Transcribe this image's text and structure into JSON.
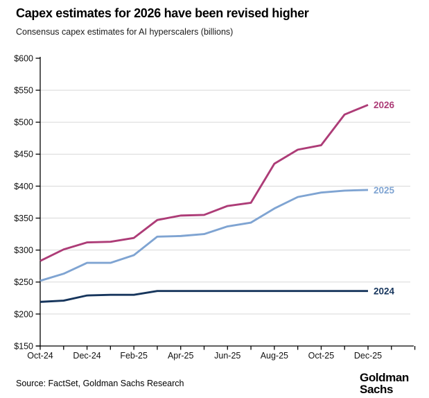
{
  "header": {
    "title_note": "bound from chart_data.title"
  },
  "footer": {
    "source": "Source: FactSet, Goldman Sachs Research",
    "logo_line1": "Goldman",
    "logo_line2": "Sachs"
  },
  "chart_data": {
    "type": "line",
    "title": "Capex estimates for 2026 have been revised higher",
    "subtitle": "Consensus capex estimates for AI hyperscalers (billions)",
    "x": [
      "Oct-24",
      "Nov-24",
      "Dec-24",
      "Jan-25",
      "Feb-25",
      "Mar-25",
      "Apr-25",
      "May-25",
      "Jun-25",
      "Jul-25",
      "Aug-25",
      "Sep-25",
      "Oct-25",
      "Nov-25",
      "Dec-25"
    ],
    "x_axis_tick_labels": [
      "Oct-24",
      "Dec-24",
      "Feb-25",
      "Apr-25",
      "Jun-25",
      "Aug-25",
      "Oct-25",
      "Dec-25"
    ],
    "series": [
      {
        "name": "2026",
        "color": "#AD3C77",
        "values": [
          283,
          301,
          312,
          313,
          319,
          347,
          354,
          355,
          369,
          374,
          435,
          457,
          464,
          512,
          527
        ]
      },
      {
        "name": "2025",
        "color": "#7FA4D2",
        "values": [
          252,
          263,
          280,
          280,
          292,
          321,
          322,
          325,
          337,
          343,
          365,
          383,
          390,
          393,
          394
        ]
      },
      {
        "name": "2024",
        "color": "#16355C",
        "values": [
          219,
          221,
          229,
          230,
          230,
          236,
          236,
          236,
          236,
          236,
          236,
          236,
          236,
          236,
          236
        ]
      }
    ],
    "ylim": [
      150,
      600
    ],
    "yticks": [
      600,
      550,
      500,
      450,
      400,
      350,
      300,
      250,
      200,
      150
    ],
    "ytick_labels": [
      "$600",
      "$550",
      "$500",
      "$450",
      "$400",
      "$350",
      "$300",
      "$250",
      "$200",
      "$150"
    ],
    "grid": true,
    "grid_color": "#d8d8d8",
    "axis_color": "#000000",
    "legend_position": "end-of-line"
  }
}
